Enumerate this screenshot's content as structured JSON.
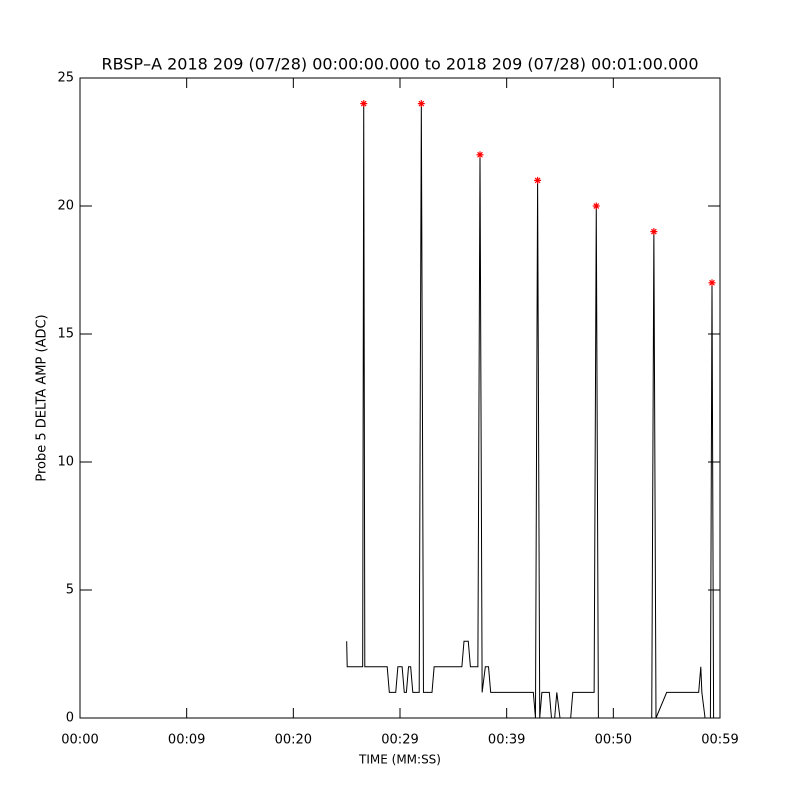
{
  "chart_data": {
    "type": "line",
    "title": "RBSP–A 2018 209 (07/28) 00:00:00.000 to 2018 209 (07/28) 00:01:00.000",
    "xlabel": "TIME (MM:SS)",
    "ylabel": "Probe 5 DELTA AMP (ADC)",
    "xlim": [
      0,
      60
    ],
    "ylim": [
      0,
      25
    ],
    "xticks": [
      {
        "value": 0,
        "label": "00:00"
      },
      {
        "value": 10,
        "label": "00:09"
      },
      {
        "value": 20,
        "label": "00:20"
      },
      {
        "value": 30,
        "label": "00:29"
      },
      {
        "value": 40,
        "label": "00:39"
      },
      {
        "value": 50,
        "label": "00:50"
      },
      {
        "value": 60,
        "label": "00:59"
      }
    ],
    "yticks": [
      0,
      5,
      10,
      15,
      20,
      25
    ],
    "series": [
      {
        "color": "#000000",
        "x": [
          25.0,
          25.05,
          26.5,
          26.6,
          26.7,
          28.8,
          29.0,
          29.6,
          29.8,
          30.2,
          30.4,
          30.6,
          30.8,
          31.0,
          31.2,
          31.8,
          32.0,
          32.2,
          33.0,
          33.2,
          35.8,
          36.0,
          36.4,
          36.6,
          37.3,
          37.5,
          37.7,
          38.0,
          38.3,
          38.5,
          42.5,
          42.7,
          42.9,
          43.1,
          43.3,
          44.0,
          44.2,
          44.5,
          44.7,
          45.0,
          46.0,
          46.2,
          48.2,
          48.4,
          48.6,
          53.6,
          53.8,
          54.0,
          55.0,
          58.0,
          58.2,
          58.3,
          58.6,
          59.1,
          59.25,
          59.4
        ],
        "values": [
          3,
          2,
          2,
          24,
          2,
          2,
          1,
          1,
          2,
          2,
          1,
          1,
          2,
          2,
          1,
          1,
          24,
          1,
          1,
          2,
          2,
          3,
          3,
          2,
          2,
          22,
          1,
          2,
          2,
          1,
          1,
          0,
          21,
          0,
          1,
          1,
          0,
          0,
          1,
          0,
          0,
          1,
          1,
          20,
          0,
          0,
          19,
          0,
          1,
          1,
          2,
          1,
          0,
          0,
          17,
          0
        ]
      },
      {
        "color": "#ff0000",
        "marker": "asterisk",
        "x": [
          26.6,
          32.0,
          37.5,
          42.9,
          48.4,
          53.8,
          59.25
        ],
        "values": [
          24,
          24,
          22,
          21,
          20,
          19,
          17
        ]
      }
    ]
  }
}
